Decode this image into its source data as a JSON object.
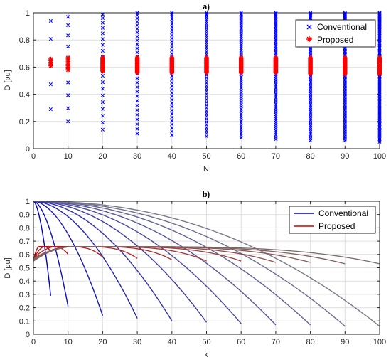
{
  "chart_data": [
    {
      "type": "scatter",
      "title": "a)",
      "xlabel": "N",
      "ylabel": "D [pu]",
      "xlim": [
        0,
        100
      ],
      "ylim": [
        0,
        1
      ],
      "xticks": [
        0,
        10,
        20,
        30,
        40,
        50,
        60,
        70,
        80,
        90,
        100
      ],
      "yticks": [
        0,
        0.2,
        0.4,
        0.6,
        0.8,
        1
      ],
      "grid": true,
      "legend_position": "top-right",
      "series": [
        {
          "name": "Conventional",
          "color": "#0000ff",
          "marker": "x",
          "x_positions": [
            5,
            10,
            20,
            30,
            40,
            50,
            60,
            70,
            80,
            90,
            100
          ],
          "ranges": [
            [
              0.29,
              0.94
            ],
            [
              0.2,
              0.97
            ],
            [
              0.14,
              0.99
            ],
            [
              0.11,
              1.0
            ],
            [
              0.1,
              1.0
            ],
            [
              0.09,
              1.0
            ],
            [
              0.08,
              1.0
            ],
            [
              0.07,
              1.0
            ],
            [
              0.06,
              1.0
            ],
            [
              0.06,
              1.0
            ],
            [
              0.05,
              1.0
            ]
          ]
        },
        {
          "name": "Proposed",
          "color": "#ff0000",
          "marker": "*",
          "x_positions": [
            5,
            10,
            20,
            30,
            40,
            50,
            60,
            70,
            80,
            90,
            100
          ],
          "ranges": [
            [
              0.61,
              0.66
            ],
            [
              0.58,
              0.67
            ],
            [
              0.57,
              0.67
            ],
            [
              0.56,
              0.67
            ],
            [
              0.56,
              0.67
            ],
            [
              0.56,
              0.67
            ],
            [
              0.56,
              0.67
            ],
            [
              0.56,
              0.67
            ],
            [
              0.55,
              0.67
            ],
            [
              0.55,
              0.67
            ],
            [
              0.55,
              0.67
            ]
          ]
        }
      ]
    },
    {
      "type": "line",
      "title": "b)",
      "xlabel": "k",
      "ylabel": "D [pu]",
      "xlim": [
        0,
        100
      ],
      "ylim": [
        0,
        1
      ],
      "xticks": [
        0,
        10,
        20,
        30,
        40,
        50,
        60,
        70,
        80,
        90,
        100
      ],
      "yticks": [
        0,
        0.1,
        0.2,
        0.3,
        0.4,
        0.5,
        0.6,
        0.7,
        0.8,
        0.9,
        1
      ],
      "grid": true,
      "legend_position": "top-right",
      "curve_endpoints_N": [
        5,
        10,
        20,
        30,
        40,
        50,
        60,
        70,
        80,
        90,
        100
      ],
      "series": [
        {
          "name": "Conventional",
          "color": "#0000c0",
          "start_value": 1.0,
          "end_values": [
            0.29,
            0.21,
            0.14,
            0.12,
            0.1,
            0.09,
            0.08,
            0.07,
            0.07,
            0.06,
            0.06
          ]
        },
        {
          "name": "Proposed",
          "color": "#cc0000",
          "start_value": 0.55,
          "peak_value": 0.66,
          "end_values": [
            0.62,
            0.6,
            0.58,
            0.57,
            0.56,
            0.55,
            0.55,
            0.54,
            0.54,
            0.53,
            0.53
          ]
        }
      ]
    }
  ]
}
